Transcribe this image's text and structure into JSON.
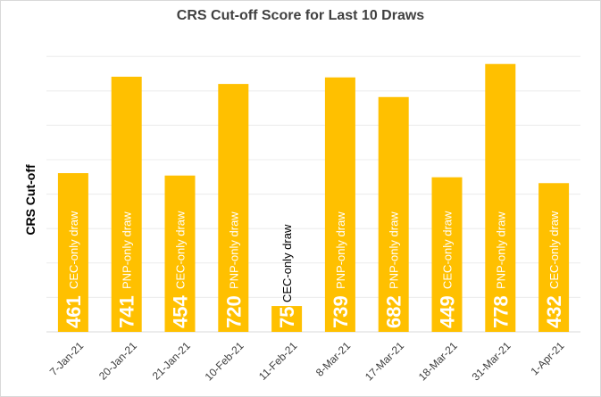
{
  "chart_data": {
    "type": "bar",
    "title": "CRS Cut-off Score for Last 10 Draws",
    "xlabel": "",
    "ylabel": "CRS Cut-off",
    "ylim": [
      0,
      900
    ],
    "grid": true,
    "categories": [
      "7-Jan-21",
      "20-Jan-21",
      "21-Jan-21",
      "10-Feb-21",
      "11-Feb-21",
      "8-Mar-21",
      "17-Mar-21",
      "18-Mar-21",
      "31-Mar-21",
      "1-Apr-21"
    ],
    "values": [
      461,
      741,
      454,
      720,
      75,
      739,
      682,
      449,
      778,
      432
    ],
    "bar_annotations": [
      "CEC-only draw",
      "PNP-only draw",
      "CEC-only draw",
      "PNP-only draw",
      "CEC-only draw",
      "PNP-only draw",
      "PNP-only draw",
      "CEC-only draw",
      "PNP-only draw",
      "CEC-only draw"
    ],
    "colors": {
      "bar": "#FFC000",
      "value_label": "#ffffff",
      "gridline": "#ececec",
      "axis": "#d9d9d9"
    }
  }
}
